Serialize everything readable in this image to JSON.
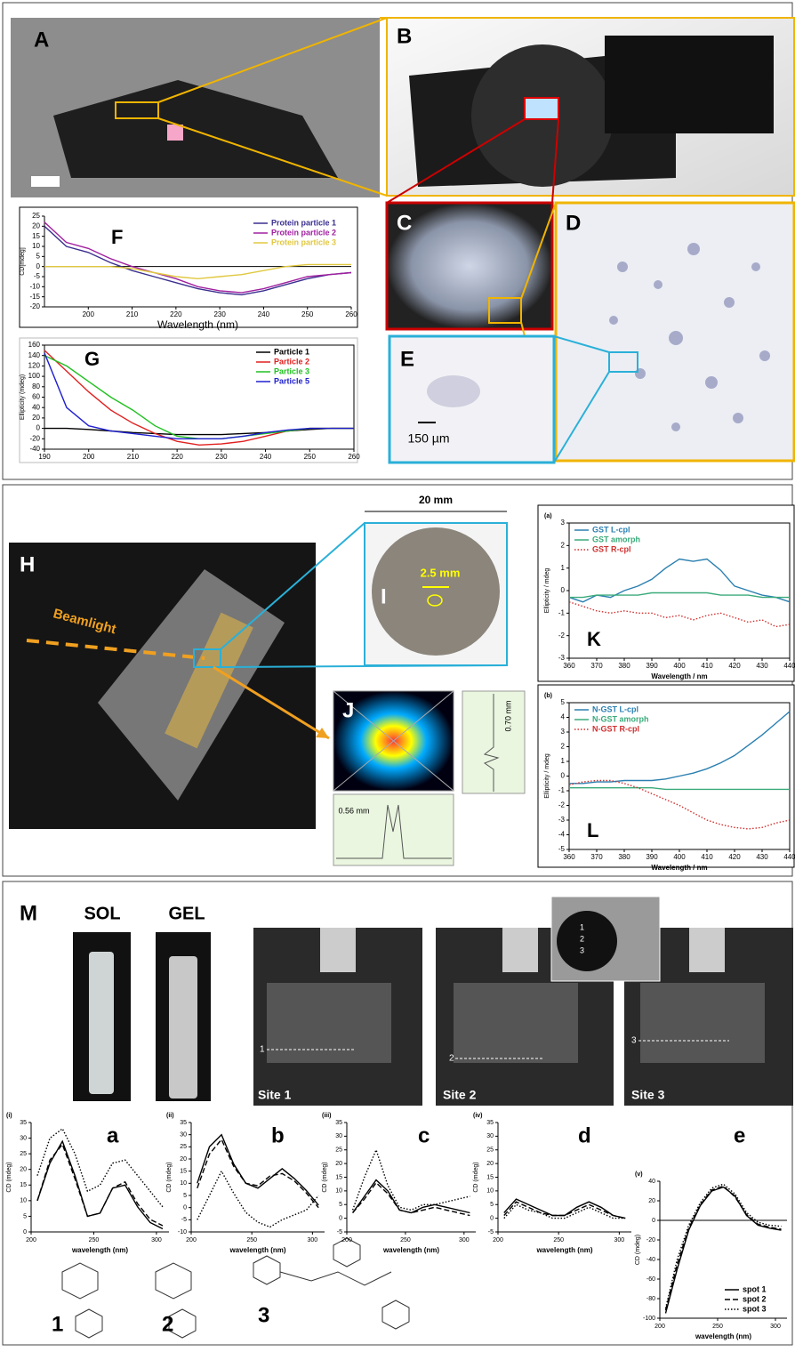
{
  "labels": {
    "panel_letters": [
      "A",
      "B",
      "C",
      "D",
      "E",
      "H",
      "I",
      "J",
      "M"
    ],
    "scale_e": "150 µm",
    "beamlight": "Beamlight",
    "width_i": "20 mm",
    "spot_i": "2.5 mm",
    "profile_v": "0.70 mm",
    "profile_h": "0.56 mm",
    "sol": "SOL",
    "gel": "GEL",
    "sites": [
      "Site 1",
      "Site 2",
      "Site 3"
    ],
    "site_marks": [
      "1",
      "2",
      "3"
    ],
    "inset_spots": [
      "1",
      "2",
      "3"
    ],
    "compounds": [
      "1",
      "2",
      "3"
    ]
  },
  "chart_data": [
    {
      "type": "line",
      "title": "F",
      "xlabel": "Wavelength (nm)",
      "ylabel": "CD[mdeg]",
      "xlim": [
        190,
        260
      ],
      "xticks": [
        200,
        210,
        220,
        230,
        240,
        250,
        260
      ],
      "ylim": [
        -20,
        25
      ],
      "yticks": [
        -20,
        -15,
        -10,
        -5,
        0,
        5,
        10,
        15,
        20,
        25
      ],
      "zero_line": true,
      "frame": false,
      "legend": "top-right",
      "x": [
        190,
        195,
        200,
        205,
        210,
        215,
        220,
        225,
        230,
        235,
        240,
        245,
        250,
        255,
        260
      ],
      "series": [
        {
          "name": "Protein particle 1",
          "color": "#3a2f8f",
          "dash": "solid",
          "values": [
            20,
            10,
            7,
            2,
            -2,
            -5,
            -8,
            -11,
            -13,
            -14,
            -12,
            -9,
            -6,
            -4,
            -3
          ]
        },
        {
          "name": "Protein particle 2",
          "color": "#a020a0",
          "dash": "solid",
          "values": [
            22,
            12,
            9,
            4,
            0,
            -3,
            -6,
            -10,
            -12,
            -13,
            -11,
            -8,
            -5,
            -4,
            -3
          ]
        },
        {
          "name": "Protein particle 3",
          "color": "#e0c840",
          "dash": "solid",
          "values": [
            0,
            0,
            0,
            0,
            -1,
            -3,
            -5,
            -6,
            -5,
            -4,
            -2,
            0,
            1,
            1,
            1
          ]
        }
      ]
    },
    {
      "type": "line",
      "title": "G",
      "ylabel": "Ellipticity (mdeg)",
      "xlim": [
        190,
        260
      ],
      "xticks": [
        190,
        200,
        210,
        220,
        230,
        240,
        250,
        260
      ],
      "ylim": [
        -40,
        160
      ],
      "yticks": [
        -40,
        -20,
        0,
        20,
        40,
        60,
        80,
        100,
        120,
        140,
        160
      ],
      "frame": true,
      "legend": "top-right",
      "x": [
        190,
        195,
        200,
        205,
        210,
        215,
        220,
        225,
        230,
        235,
        240,
        245,
        250,
        255,
        260
      ],
      "series": [
        {
          "name": "Particle 1",
          "color": "#000000",
          "dash": "solid",
          "values": [
            0,
            0,
            -2,
            -5,
            -8,
            -10,
            -12,
            -12,
            -12,
            -10,
            -8,
            -5,
            -2,
            0,
            0
          ]
        },
        {
          "name": "Particle 2",
          "color": "#e02020",
          "dash": "solid",
          "values": [
            150,
            110,
            70,
            35,
            10,
            -10,
            -25,
            -32,
            -30,
            -25,
            -15,
            -5,
            0,
            0,
            0
          ]
        },
        {
          "name": "Particle 3",
          "color": "#20c020",
          "dash": "solid",
          "values": [
            140,
            120,
            90,
            60,
            35,
            5,
            -15,
            -20,
            -20,
            -15,
            -10,
            -5,
            0,
            0,
            0
          ]
        },
        {
          "name": "Particle 5",
          "color": "#2020d0",
          "dash": "solid",
          "values": [
            145,
            40,
            5,
            -5,
            -10,
            -15,
            -20,
            -20,
            -20,
            -15,
            -8,
            -3,
            0,
            0,
            0
          ]
        }
      ]
    },
    {
      "type": "line",
      "title": "K",
      "tag": "(a)",
      "xlabel": "Wavelength / nm",
      "ylabel": "Ellipticity / mdeg",
      "xlim": [
        360,
        440
      ],
      "xticks": [
        360,
        370,
        380,
        390,
        400,
        410,
        420,
        430,
        440
      ],
      "ylim": [
        -3,
        3
      ],
      "yticks": [
        -3,
        -2,
        -1,
        0,
        1,
        2,
        3
      ],
      "frame": true,
      "legend": "top-left",
      "x": [
        360,
        365,
        370,
        375,
        380,
        385,
        390,
        395,
        400,
        405,
        410,
        415,
        420,
        425,
        430,
        435,
        440
      ],
      "series": [
        {
          "name": "GST L-cpl",
          "color": "#2a7fb0",
          "dash": "solid",
          "values": [
            -0.3,
            -0.5,
            -0.2,
            -0.3,
            0,
            0.2,
            0.5,
            1,
            1.4,
            1.3,
            1.4,
            0.9,
            0.2,
            0,
            -0.2,
            -0.3,
            -0.5
          ]
        },
        {
          "name": "GST amorph",
          "color": "#3aaa7a",
          "dash": "solid",
          "values": [
            -0.3,
            -0.3,
            -0.2,
            -0.2,
            -0.2,
            -0.2,
            -0.1,
            -0.1,
            -0.1,
            -0.1,
            -0.1,
            -0.2,
            -0.2,
            -0.2,
            -0.3,
            -0.3,
            -0.3
          ]
        },
        {
          "name": "GST R-cpl",
          "color": "#d03030",
          "dash": "dotted",
          "values": [
            -0.5,
            -0.7,
            -0.9,
            -1,
            -0.9,
            -1,
            -1,
            -1.2,
            -1.1,
            -1.3,
            -1.1,
            -1,
            -1.2,
            -1.4,
            -1.3,
            -1.6,
            -1.5
          ]
        }
      ]
    },
    {
      "type": "line",
      "title": "L",
      "tag": "(b)",
      "xlabel": "Wavelength / nm",
      "ylabel": "Ellipticity / mdeg",
      "xlim": [
        360,
        440
      ],
      "xticks": [
        360,
        370,
        380,
        390,
        400,
        410,
        420,
        430,
        440
      ],
      "ylim": [
        -5,
        5
      ],
      "yticks": [
        -5,
        -4,
        -3,
        -2,
        -1,
        0,
        1,
        2,
        3,
        4,
        5
      ],
      "frame": true,
      "legend": "top-left",
      "x": [
        360,
        365,
        370,
        375,
        380,
        385,
        390,
        395,
        400,
        405,
        410,
        415,
        420,
        425,
        430,
        435,
        440
      ],
      "series": [
        {
          "name": "N-GST L-cpl",
          "color": "#2a7fb0",
          "dash": "solid",
          "values": [
            -0.5,
            -0.5,
            -0.4,
            -0.4,
            -0.3,
            -0.3,
            -0.3,
            -0.2,
            0,
            0.2,
            0.5,
            0.9,
            1.4,
            2.1,
            2.8,
            3.6,
            4.4
          ]
        },
        {
          "name": "N-GST amorph",
          "color": "#3aaa7a",
          "dash": "solid",
          "values": [
            -0.8,
            -0.8,
            -0.8,
            -0.8,
            -0.8,
            -0.8,
            -0.8,
            -0.9,
            -0.9,
            -0.9,
            -0.9,
            -0.9,
            -0.9,
            -0.9,
            -0.9,
            -0.9,
            -0.9
          ]
        },
        {
          "name": "N-GST R-cpl",
          "color": "#d03030",
          "dash": "dotted",
          "values": [
            -0.6,
            -0.4,
            -0.3,
            -0.3,
            -0.5,
            -0.8,
            -1.2,
            -1.6,
            -2,
            -2.5,
            -3,
            -3.3,
            -3.5,
            -3.6,
            -3.5,
            -3.2,
            -3
          ]
        }
      ]
    },
    {
      "type": "line",
      "title": "a",
      "tag": "(i)",
      "xlabel": "wavelength (nm)",
      "ylabel": "CD (mdeg)",
      "xlim": [
        200,
        310
      ],
      "xticks": [
        200,
        250,
        300
      ],
      "ylim": [
        0,
        35
      ],
      "yticks": [
        0,
        5,
        10,
        15,
        20,
        25,
        30,
        35
      ],
      "frame": false,
      "x": [
        205,
        215,
        225,
        235,
        245,
        255,
        265,
        275,
        285,
        295,
        305
      ],
      "series": [
        {
          "color": "#000000",
          "dash": "solid",
          "values": [
            10,
            22,
            29,
            18,
            5,
            6,
            14,
            15,
            8,
            3,
            1
          ]
        },
        {
          "color": "#000000",
          "dash": "dashed",
          "values": [
            10,
            23,
            28,
            17,
            5,
            6,
            14,
            16,
            9,
            4,
            2
          ]
        },
        {
          "color": "#000000",
          "dash": "dotted",
          "values": [
            18,
            30,
            33,
            25,
            13,
            15,
            22,
            23,
            18,
            13,
            8
          ]
        }
      ]
    },
    {
      "type": "line",
      "title": "b",
      "tag": "(ii)",
      "xlabel": "wavelength (nm)",
      "ylabel": "CD (mdeg)",
      "xlim": [
        200,
        310
      ],
      "xticks": [
        200,
        250,
        300
      ],
      "ylim": [
        -10,
        35
      ],
      "yticks": [
        -10,
        -5,
        0,
        5,
        10,
        15,
        20,
        25,
        30,
        35
      ],
      "frame": false,
      "x": [
        205,
        215,
        225,
        235,
        245,
        255,
        265,
        275,
        285,
        295,
        305
      ],
      "series": [
        {
          "color": "#000000",
          "dash": "solid",
          "values": [
            10,
            25,
            30,
            18,
            10,
            8,
            12,
            16,
            12,
            7,
            1
          ]
        },
        {
          "color": "#000000",
          "dash": "dashed",
          "values": [
            8,
            22,
            28,
            17,
            10,
            9,
            13,
            14,
            11,
            6,
            0
          ]
        },
        {
          "color": "#000000",
          "dash": "dotted",
          "values": [
            -5,
            5,
            15,
            6,
            -2,
            -6,
            -8,
            -5,
            -3,
            -1,
            5
          ]
        }
      ]
    },
    {
      "type": "line",
      "title": "c",
      "tag": "(iii)",
      "xlabel": "wavelength (nm)",
      "ylabel": "CD (mdeg)",
      "xlim": [
        200,
        310
      ],
      "xticks": [
        200,
        250,
        300
      ],
      "ylim": [
        -5,
        35
      ],
      "yticks": [
        -5,
        0,
        5,
        10,
        15,
        20,
        25,
        30,
        35
      ],
      "frame": false,
      "x": [
        205,
        215,
        225,
        235,
        245,
        255,
        265,
        275,
        285,
        295,
        305
      ],
      "series": [
        {
          "color": "#000000",
          "dash": "solid",
          "values": [
            2,
            8,
            14,
            10,
            3,
            2,
            4,
            5,
            4,
            3,
            2
          ]
        },
        {
          "color": "#000000",
          "dash": "dashed",
          "values": [
            2,
            7,
            13,
            9,
            3,
            2,
            3,
            4,
            3,
            2,
            1
          ]
        },
        {
          "color": "#000000",
          "dash": "dotted",
          "values": [
            3,
            15,
            25,
            12,
            4,
            3,
            5,
            5,
            6,
            7,
            8
          ]
        }
      ]
    },
    {
      "type": "line",
      "title": "d",
      "tag": "(iv)",
      "xlabel": "wavelength (nm)",
      "ylabel": "CD (mdeg)",
      "xlim": [
        200,
        310
      ],
      "xticks": [
        200,
        250,
        300
      ],
      "ylim": [
        -5,
        35
      ],
      "yticks": [
        -5,
        0,
        5,
        10,
        15,
        20,
        25,
        30,
        35
      ],
      "frame": false,
      "x": [
        205,
        215,
        225,
        235,
        245,
        255,
        265,
        275,
        285,
        295,
        305
      ],
      "series": [
        {
          "color": "#000000",
          "dash": "solid",
          "values": [
            2,
            7,
            5,
            3,
            1,
            1,
            4,
            6,
            4,
            1,
            0
          ]
        },
        {
          "color": "#000000",
          "dash": "dashed",
          "values": [
            1,
            6,
            4,
            2,
            1,
            1,
            3,
            5,
            3,
            1,
            0
          ]
        },
        {
          "color": "#000000",
          "dash": "dotted",
          "values": [
            0,
            5,
            3,
            2,
            0,
            0,
            2,
            4,
            2,
            0,
            0
          ]
        }
      ]
    },
    {
      "type": "line",
      "title": "e",
      "tag": "(v)",
      "xlabel": "wavelength (nm)",
      "ylabel": "CD (mdeg)",
      "xlim": [
        200,
        310
      ],
      "xticks": [
        200,
        250,
        300
      ],
      "ylim": [
        -100,
        40
      ],
      "yticks": [
        -100,
        -80,
        -60,
        -40,
        -20,
        0,
        20,
        40
      ],
      "zero_line": true,
      "frame": false,
      "legend": "bottom-right",
      "x": [
        205,
        215,
        225,
        235,
        245,
        255,
        265,
        275,
        285,
        295,
        305
      ],
      "series": [
        {
          "name": "spot 1",
          "color": "#000000",
          "dash": "solid",
          "values": [
            -95,
            -50,
            -10,
            15,
            30,
            34,
            25,
            5,
            -5,
            -8,
            -10
          ]
        },
        {
          "name": "spot 2",
          "color": "#000000",
          "dash": "dashed",
          "values": [
            -92,
            -45,
            -8,
            16,
            31,
            35,
            24,
            6,
            -4,
            -7,
            -9
          ]
        },
        {
          "name": "spot 3",
          "color": "#000000",
          "dash": "dotted",
          "values": [
            -90,
            -40,
            -5,
            18,
            33,
            37,
            27,
            8,
            -2,
            -5,
            -6
          ]
        }
      ]
    }
  ]
}
